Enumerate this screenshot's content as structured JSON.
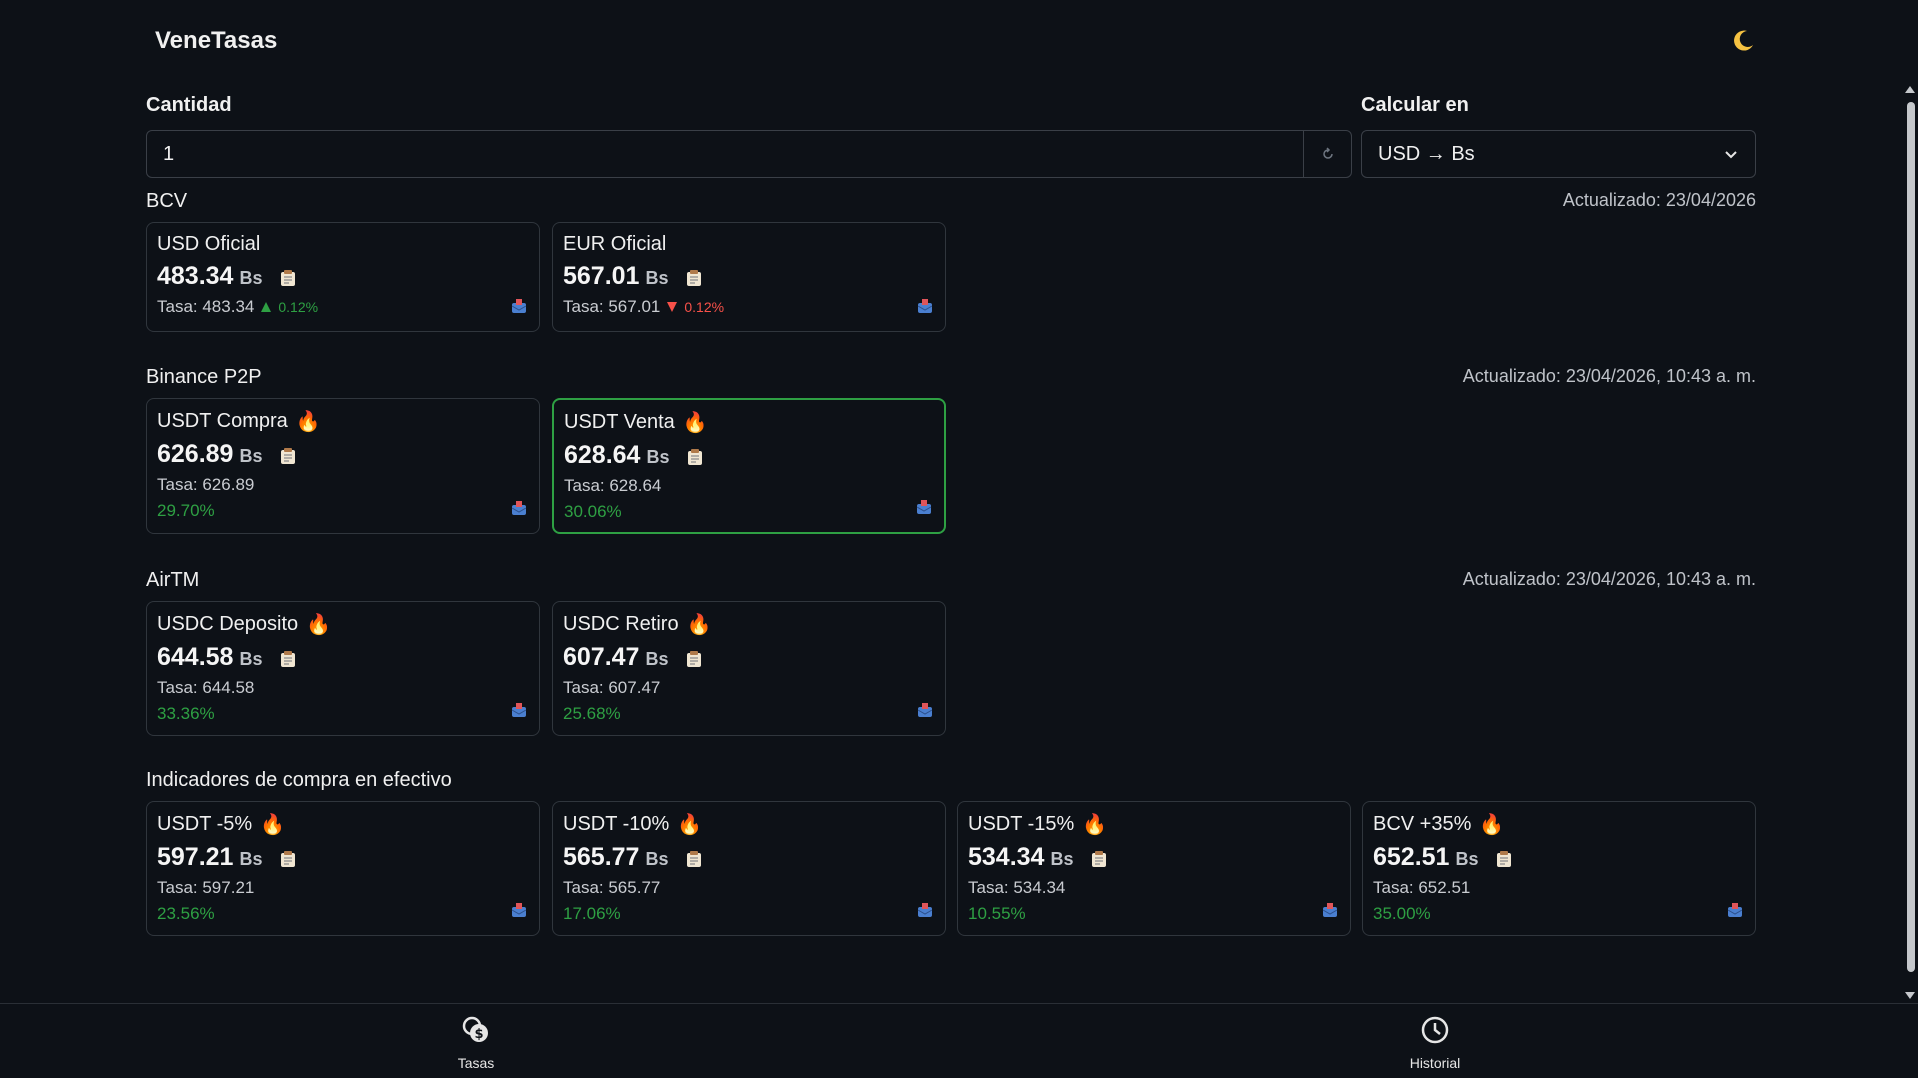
{
  "app": {
    "title": "VeneTasas",
    "theme_icon": "moon-icon"
  },
  "form": {
    "quantity_label": "Cantidad",
    "quantity_value": "1",
    "calc_label": "Calcular en",
    "calc_selected": "USD → Bs"
  },
  "sections": {
    "bcv": {
      "title": "BCV",
      "updated": "Actualizado: 23/04/2026",
      "cards": [
        {
          "title": "USD Oficial",
          "value": "483.34",
          "unit": "Bs",
          "rate": "Tasa: 483.34",
          "change": "0.12%",
          "direction": "up"
        },
        {
          "title": "EUR Oficial",
          "value": "567.01",
          "unit": "Bs",
          "rate": "Tasa: 567.01",
          "change": "0.12%",
          "direction": "down"
        }
      ]
    },
    "binance": {
      "title": "Binance P2P",
      "updated": "Actualizado: 23/04/2026, 10:43 a. m.",
      "cards": [
        {
          "title": "USDT Compra",
          "value": "626.89",
          "unit": "Bs",
          "rate": "Tasa: 626.89",
          "pct": "29.70%"
        },
        {
          "title": "USDT Venta",
          "value": "628.64",
          "unit": "Bs",
          "rate": "Tasa: 628.64",
          "pct": "30.06%"
        }
      ]
    },
    "airtm": {
      "title": "AirTM",
      "updated": "Actualizado: 23/04/2026, 10:43 a. m.",
      "cards": [
        {
          "title": "USDC Deposito",
          "value": "644.58",
          "unit": "Bs",
          "rate": "Tasa: 644.58",
          "pct": "33.36%"
        },
        {
          "title": "USDC Retiro",
          "value": "607.47",
          "unit": "Bs",
          "rate": "Tasa: 607.47",
          "pct": "25.68%"
        }
      ]
    },
    "cash": {
      "title": "Indicadores de compra en efectivo",
      "cards": [
        {
          "title": "USDT -5%",
          "value": "597.21",
          "unit": "Bs",
          "rate": "Tasa: 597.21",
          "pct": "23.56%"
        },
        {
          "title": "USDT -10%",
          "value": "565.77",
          "unit": "Bs",
          "rate": "Tasa: 565.77",
          "pct": "17.06%"
        },
        {
          "title": "USDT -15%",
          "value": "534.34",
          "unit": "Bs",
          "rate": "Tasa: 534.34",
          "pct": "10.55%"
        },
        {
          "title": "BCV +35%",
          "value": "652.51",
          "unit": "Bs",
          "rate": "Tasa: 652.51",
          "pct": "35.00%"
        }
      ]
    }
  },
  "nav": {
    "tasas": {
      "label": "Tasas",
      "icon": "coins-icon"
    },
    "historial": {
      "label": "Historial",
      "icon": "clock-icon"
    }
  },
  "colors": {
    "background": "#0d1117",
    "positive": "#2ea043",
    "negative": "#f85149",
    "selected_border": "#2ea043"
  }
}
